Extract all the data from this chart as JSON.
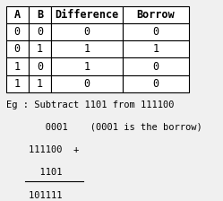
{
  "headers": [
    "A",
    "B",
    "Difference",
    "Borrow"
  ],
  "rows": [
    [
      "0",
      "0",
      "0",
      "0"
    ],
    [
      "0",
      "1",
      "1",
      "1"
    ],
    [
      "1",
      "0",
      "1",
      "0"
    ],
    [
      "1",
      "1",
      "0",
      "0"
    ]
  ],
  "eg_lines": [
    "Eg : Subtract 1101 from 111100",
    "       0001    (0001 is the borrow)",
    "    111100  +",
    "      1101",
    "    101111"
  ],
  "underline_line_index": 3,
  "bg_color": "#f0f0f0",
  "table_bg": "#ffffff",
  "text_color": "#000000"
}
